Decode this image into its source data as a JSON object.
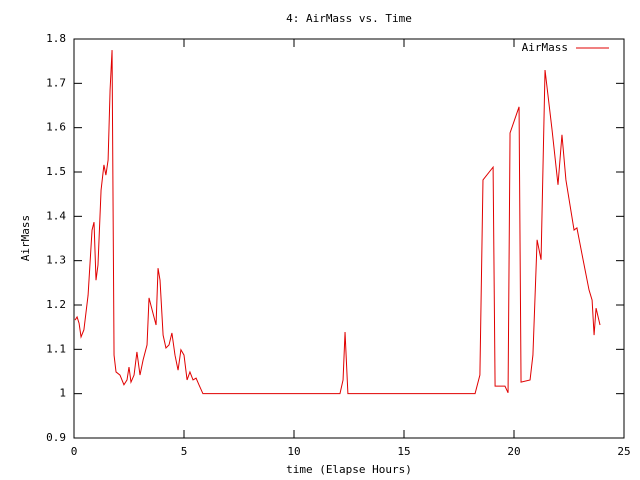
{
  "chart_data": {
    "type": "line",
    "title": "4: AirMass vs. Time",
    "xlabel": "time (Elapse Hours)",
    "ylabel": "AirMass",
    "xlim": [
      0,
      25
    ],
    "xticks": [
      0,
      5,
      10,
      15,
      20,
      25
    ],
    "ylim": [
      0.9,
      1.8
    ],
    "yticks": [
      0.9,
      1,
      1.1,
      1.2,
      1.3,
      1.4,
      1.5,
      1.6,
      1.7,
      1.8
    ],
    "legend": "top-right",
    "x": [
      0.05,
      0.14,
      0.23,
      0.32,
      0.45,
      0.64,
      0.82,
      0.91,
      1.0,
      1.09,
      1.23,
      1.36,
      1.45,
      1.55,
      1.64,
      1.73,
      1.82,
      1.91,
      2.09,
      2.27,
      2.41,
      2.5,
      2.59,
      2.73,
      2.86,
      3.0,
      3.14,
      3.32,
      3.41,
      3.55,
      3.73,
      3.82,
      3.91,
      4.05,
      4.18,
      4.32,
      4.45,
      4.59,
      4.73,
      4.86,
      5.0,
      5.14,
      5.27,
      5.41,
      5.55,
      5.68,
      5.86,
      12.09,
      12.23,
      12.32,
      12.45,
      18.23,
      18.45,
      18.59,
      19.05,
      19.14,
      19.59,
      19.73,
      19.82,
      20.23,
      20.32,
      20.73,
      20.86,
      21.05,
      21.23,
      21.41,
      21.73,
      22.0,
      22.18,
      22.36,
      22.73,
      22.86,
      23.14,
      23.41,
      23.55,
      23.64,
      23.73,
      23.91
    ],
    "series": [
      {
        "name": "AirMass",
        "color": "#e00000",
        "values": [
          1.166,
          1.173,
          1.159,
          1.128,
          1.144,
          1.222,
          1.369,
          1.387,
          1.256,
          1.29,
          1.459,
          1.516,
          1.493,
          1.527,
          1.685,
          1.775,
          1.087,
          1.049,
          1.042,
          1.02,
          1.031,
          1.06,
          1.026,
          1.042,
          1.094,
          1.042,
          1.076,
          1.11,
          1.216,
          1.189,
          1.155,
          1.283,
          1.256,
          1.132,
          1.103,
          1.11,
          1.137,
          1.087,
          1.053,
          1.099,
          1.087,
          1.031,
          1.049,
          1.031,
          1.035,
          1.02,
          1.0,
          1.0,
          1.031,
          1.139,
          1.0,
          1.0,
          1.042,
          1.482,
          1.511,
          1.017,
          1.017,
          1.002,
          1.588,
          1.647,
          1.026,
          1.031,
          1.087,
          1.347,
          1.302,
          1.73,
          1.595,
          1.471,
          1.584,
          1.482,
          1.369,
          1.374,
          1.302,
          1.234,
          1.211,
          1.132,
          1.193,
          1.155
        ]
      }
    ]
  }
}
